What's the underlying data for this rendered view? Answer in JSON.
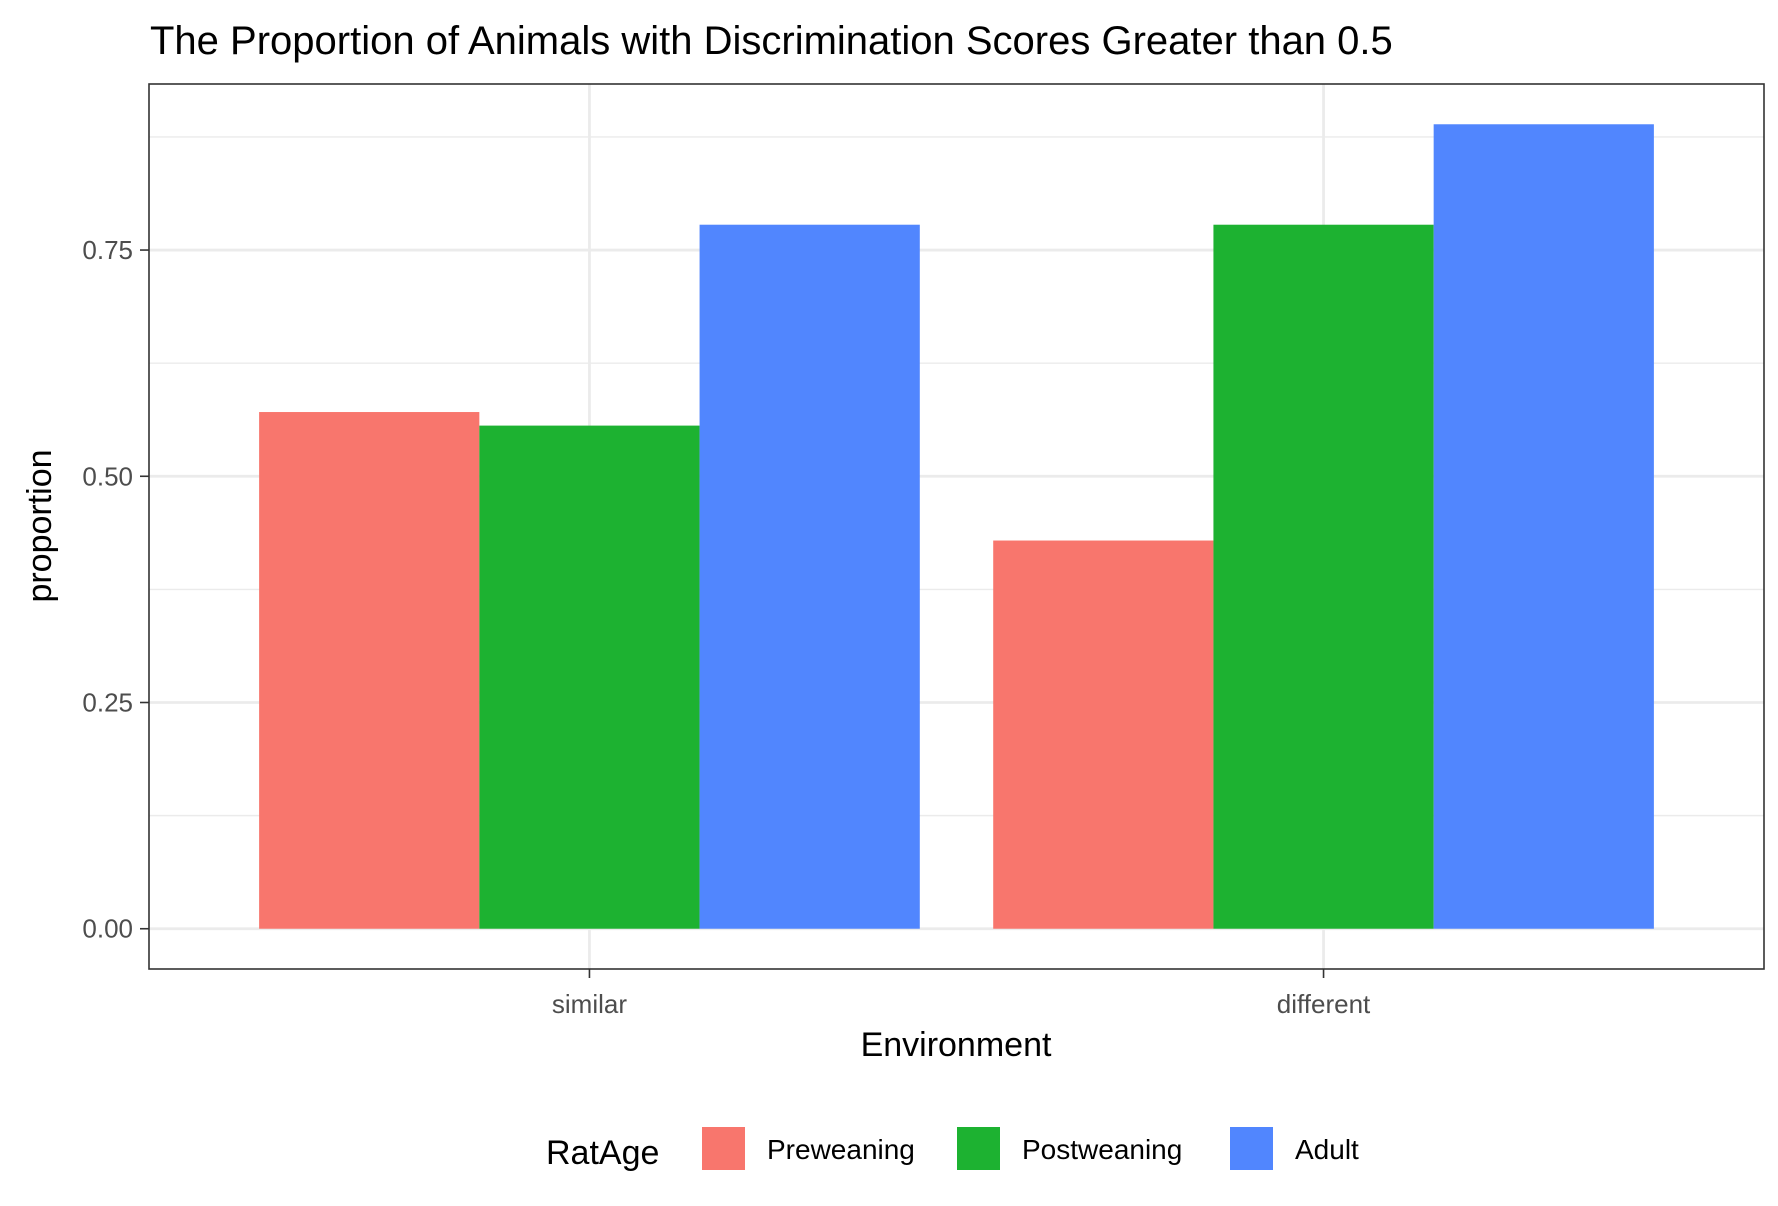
{
  "chart_data": {
    "type": "bar",
    "title": "The Proportion of Animals with Discrimination Scores Greater than 0.5",
    "xlabel": "Environment",
    "ylabel": "proportion",
    "categories": [
      "similar",
      "different"
    ],
    "series": [
      {
        "name": "Preweaning",
        "color": "#F8766D",
        "values": [
          0.571,
          0.429
        ]
      },
      {
        "name": "Postweaning",
        "color": "#1DB231",
        "values": [
          0.556,
          0.778
        ]
      },
      {
        "name": "Adult",
        "color": "#5186FE",
        "values": [
          0.778,
          0.889
        ]
      }
    ],
    "ylim": [
      -0.0445,
      0.9335
    ],
    "yticks": [
      0,
      0.25,
      0.5,
      0.75
    ],
    "ytick_labels": [
      "0.00",
      "0.25",
      "0.50",
      "0.75"
    ],
    "grid": true,
    "legend": {
      "title": "RatAge",
      "position": "bottom"
    }
  }
}
